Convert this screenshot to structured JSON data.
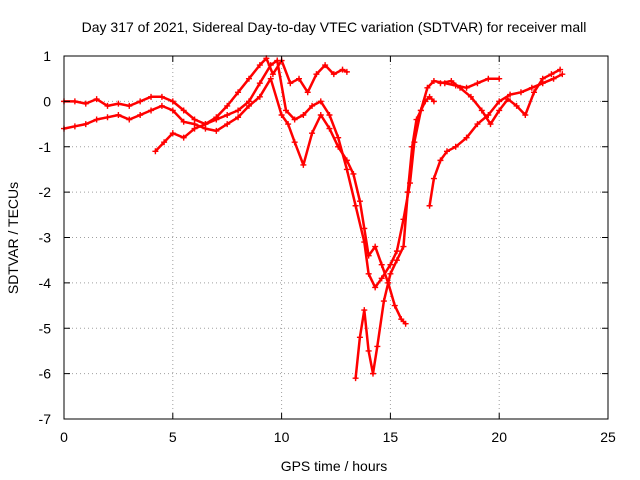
{
  "chart_data": {
    "type": "scatter",
    "title": "Day 317 of 2021, Sidereal Day-to-day VTEC variation (SDTVAR) for receiver mall",
    "xlabel": "GPS time / hours",
    "ylabel": "SDTVAR / TECUs",
    "xlim": [
      0,
      25
    ],
    "ylim": [
      -7,
      1
    ],
    "xticks": [
      "0",
      "5",
      "10",
      "15",
      "20",
      "25"
    ],
    "yticks": [
      "1",
      "0",
      "-1",
      "-2",
      "-3",
      "-4",
      "-5",
      "-6",
      "-7"
    ],
    "grid": true,
    "marker": "plus",
    "color": "#ff0000",
    "series": [
      {
        "x": [
          0.0,
          0.5,
          1.0,
          1.5,
          2.0,
          2.5,
          3.0,
          3.5,
          4.0,
          4.5,
          5.0,
          5.5,
          6.0,
          6.5,
          7.0,
          7.5,
          8.0,
          8.5,
          9.0,
          9.3,
          9.6,
          10.0,
          10.4,
          10.8,
          11.2,
          11.6,
          12.0,
          12.4,
          12.8,
          13.0
        ],
        "y": [
          0.0,
          0.0,
          -0.05,
          0.05,
          -0.1,
          -0.05,
          -0.1,
          0.0,
          0.1,
          0.1,
          0.0,
          -0.2,
          -0.4,
          -0.5,
          -0.35,
          -0.1,
          0.2,
          0.5,
          0.8,
          0.95,
          0.6,
          0.9,
          0.4,
          0.5,
          0.2,
          0.6,
          0.8,
          0.6,
          0.7,
          0.65
        ]
      },
      {
        "x": [
          0.0,
          0.5,
          1.0,
          1.5,
          2.0,
          2.5,
          3.0,
          3.5,
          4.0,
          4.5,
          5.0,
          5.5,
          6.0,
          6.5,
          7.0,
          7.5,
          8.0,
          8.5,
          9.0,
          9.5,
          10.0,
          10.3,
          10.6,
          11.0,
          11.4,
          11.8,
          12.2,
          12.6,
          13.0,
          13.3,
          13.6,
          13.8,
          14.0,
          14.3,
          14.6,
          14.9,
          15.2,
          15.5,
          15.7
        ],
        "y": [
          -0.6,
          -0.55,
          -0.5,
          -0.4,
          -0.35,
          -0.3,
          -0.4,
          -0.3,
          -0.2,
          -0.1,
          -0.2,
          -0.45,
          -0.5,
          -0.6,
          -0.65,
          -0.5,
          -0.35,
          -0.1,
          0.1,
          0.5,
          -0.3,
          -0.5,
          -0.9,
          -1.4,
          -0.7,
          -0.3,
          -0.6,
          -1.0,
          -1.3,
          -1.6,
          -2.2,
          -2.8,
          -3.4,
          -3.2,
          -3.6,
          -4.0,
          -4.5,
          -4.8,
          -4.9
        ]
      },
      {
        "x": [
          4.2,
          4.6,
          5.0,
          5.5,
          6.0,
          6.5,
          7.0,
          7.5,
          8.0,
          8.5,
          9.0,
          9.5,
          9.8,
          10.2,
          10.6,
          11.0,
          11.4,
          11.8,
          12.2,
          12.6,
          13.0,
          13.4,
          13.8,
          14.0,
          14.3,
          14.6,
          15.0,
          15.3,
          15.6,
          15.9,
          16.1,
          16.4,
          16.7,
          17.0,
          17.5,
          18.0,
          18.5,
          19.0,
          19.5,
          20.0
        ],
        "y": [
          -1.1,
          -0.9,
          -0.7,
          -0.8,
          -0.6,
          -0.5,
          -0.4,
          -0.3,
          -0.2,
          0.0,
          0.4,
          0.8,
          0.9,
          -0.2,
          -0.4,
          -0.3,
          -0.1,
          0.0,
          -0.3,
          -0.8,
          -1.5,
          -2.3,
          -3.1,
          -3.8,
          -4.1,
          -3.9,
          -3.6,
          -3.3,
          -2.6,
          -1.8,
          -0.9,
          -0.2,
          0.3,
          0.45,
          0.4,
          0.35,
          0.3,
          0.4,
          0.5,
          0.5
        ]
      },
      {
        "x": [
          13.4,
          13.6,
          13.8,
          14.0,
          14.2,
          14.4,
          14.7,
          15.0,
          15.3,
          15.6,
          15.8,
          16.0,
          16.2,
          16.4,
          16.6,
          16.8,
          17.0
        ],
        "y": [
          -6.1,
          -5.2,
          -4.6,
          -5.5,
          -6.0,
          -5.4,
          -4.4,
          -3.8,
          -3.5,
          -3.2,
          -2.0,
          -1.0,
          -0.4,
          -0.2,
          0.0,
          0.1,
          0.0
        ]
      },
      {
        "x": [
          16.8,
          17.0,
          17.3,
          17.6,
          18.0,
          18.5,
          19.0,
          19.5,
          20.0,
          20.5,
          21.0,
          21.5,
          22.0,
          22.5,
          22.9
        ],
        "y": [
          -2.3,
          -1.7,
          -1.3,
          -1.1,
          -1.0,
          -0.8,
          -0.5,
          -0.3,
          0.0,
          0.15,
          0.2,
          0.3,
          0.4,
          0.5,
          0.6
        ]
      },
      {
        "x": [
          17.3,
          17.8,
          18.2,
          18.7,
          19.2,
          19.6,
          20.0,
          20.4,
          20.8,
          21.2,
          21.6,
          22.0,
          22.4,
          22.8
        ],
        "y": [
          0.4,
          0.45,
          0.3,
          0.1,
          -0.2,
          -0.5,
          -0.2,
          0.05,
          -0.1,
          -0.3,
          0.2,
          0.5,
          0.6,
          0.7
        ]
      }
    ]
  }
}
